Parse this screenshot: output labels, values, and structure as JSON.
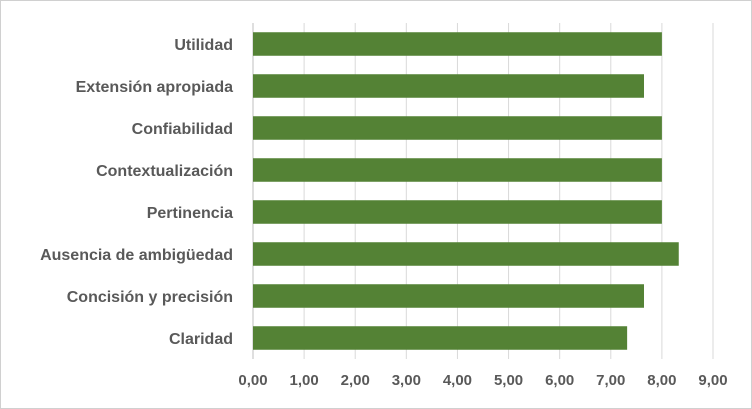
{
  "chart_data": {
    "type": "bar",
    "orientation": "horizontal",
    "title": "",
    "xlabel": "",
    "ylabel": "",
    "categories": [
      "Utilidad",
      "Extensión apropiada",
      "Confiabilidad",
      "Contextualización",
      "Pertinencia",
      "Ausencia de ambigüedad",
      "Concisión y precisión",
      "Claridad"
    ],
    "values": [
      8.0,
      7.65,
      8.0,
      8.0,
      8.0,
      8.33,
      7.65,
      7.32
    ],
    "xlim": [
      0,
      9
    ],
    "xticks": [
      0,
      1,
      2,
      3,
      4,
      5,
      6,
      7,
      8,
      9
    ],
    "xtick_labels": [
      "0,00",
      "1,00",
      "2,00",
      "3,00",
      "4,00",
      "5,00",
      "6,00",
      "7,00",
      "8,00",
      "9,00"
    ],
    "grid": "vertical",
    "legend": "none",
    "bar_color": "#548235"
  }
}
